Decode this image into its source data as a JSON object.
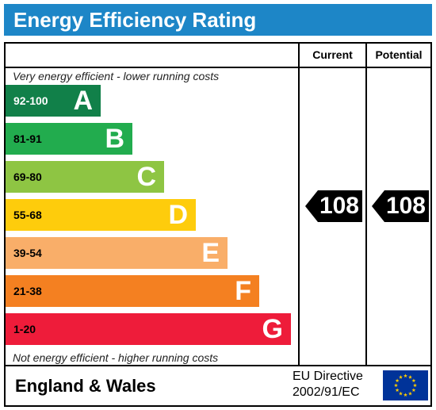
{
  "title": "Energy Efficiency Rating",
  "columns": {
    "current": "Current",
    "potential": "Potential"
  },
  "notes": {
    "top": "Very energy efficient - lower running costs",
    "bottom": "Not energy efficient - higher running costs"
  },
  "chart_data": {
    "type": "bar",
    "bands": [
      {
        "range": "92-100",
        "letter": "A",
        "color": "#118049",
        "range_color": "#ffffff"
      },
      {
        "range": "81-91",
        "letter": "B",
        "color": "#22ac4e",
        "range_color": "#000000"
      },
      {
        "range": "69-80",
        "letter": "C",
        "color": "#8ec543",
        "range_color": "#000000"
      },
      {
        "range": "55-68",
        "letter": "D",
        "color": "#fecc0c",
        "range_color": "#000000"
      },
      {
        "range": "39-54",
        "letter": "E",
        "color": "#f9ae69",
        "range_color": "#000000"
      },
      {
        "range": "21-38",
        "letter": "F",
        "color": "#f48021",
        "range_color": "#000000"
      },
      {
        "range": "1-20",
        "letter": "G",
        "color": "#ee1c3a",
        "range_color": "#000000"
      }
    ],
    "current": 108,
    "potential": 108
  },
  "footer": {
    "region": "England & Wales",
    "directive_line1": "EU Directive",
    "directive_line2": "2002/91/EC"
  },
  "flag_icon": "eu-flag-icon",
  "colors": {
    "title_bar": "#1d86c7",
    "arrow": "#000000",
    "flag": "#003399",
    "stars": "#ffcc00"
  }
}
